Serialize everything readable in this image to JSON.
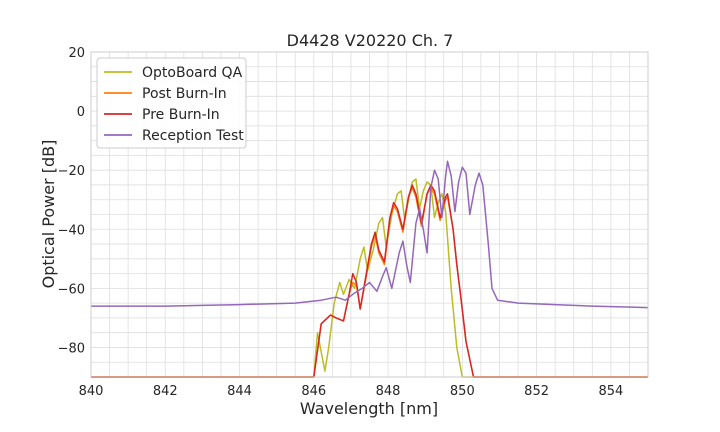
{
  "chart_data": {
    "type": "line",
    "title": "D4428 V20220 Ch. 7",
    "xlabel": "Wavelength [nm]",
    "ylabel": "Optical Power [dB]",
    "xlim": [
      840,
      855
    ],
    "ylim": [
      -90,
      20
    ],
    "xticks": [
      840,
      842,
      844,
      846,
      848,
      850,
      852,
      854
    ],
    "yticks": [
      20,
      0,
      -20,
      -40,
      -60,
      -80
    ],
    "grid": true,
    "legend_position": "top-left",
    "series": [
      {
        "name": "OptoBoard QA",
        "color": "#bcbd22",
        "points": [
          [
            840.0,
            -90
          ],
          [
            846.0,
            -90
          ],
          [
            846.1,
            -75
          ],
          [
            846.3,
            -88
          ],
          [
            846.4,
            -80
          ],
          [
            846.55,
            -65
          ],
          [
            846.7,
            -58
          ],
          [
            846.8,
            -62
          ],
          [
            846.95,
            -57
          ],
          [
            847.1,
            -60
          ],
          [
            847.25,
            -50
          ],
          [
            847.35,
            -46
          ],
          [
            847.45,
            -54
          ],
          [
            847.6,
            -47
          ],
          [
            847.75,
            -38
          ],
          [
            847.85,
            -36
          ],
          [
            847.95,
            -46
          ],
          [
            848.1,
            -35
          ],
          [
            848.25,
            -28
          ],
          [
            848.35,
            -27
          ],
          [
            848.45,
            -37
          ],
          [
            848.55,
            -30
          ],
          [
            848.65,
            -24
          ],
          [
            848.75,
            -23
          ],
          [
            848.85,
            -33
          ],
          [
            848.95,
            -27
          ],
          [
            849.05,
            -24
          ],
          [
            849.15,
            -25
          ],
          [
            849.25,
            -36
          ],
          [
            849.35,
            -31
          ],
          [
            849.45,
            -28
          ],
          [
            849.55,
            -34
          ],
          [
            849.7,
            -60
          ],
          [
            849.85,
            -80
          ],
          [
            850.0,
            -90
          ],
          [
            855.0,
            -90
          ]
        ]
      },
      {
        "name": "Post Burn-In",
        "color": "#ff7f0e",
        "points": [
          [
            840.0,
            -90
          ],
          [
            846.0,
            -90
          ],
          [
            846.2,
            -72
          ],
          [
            846.45,
            -69
          ],
          [
            846.6,
            -70
          ],
          [
            846.8,
            -71
          ],
          [
            846.95,
            -62
          ],
          [
            847.05,
            -58
          ],
          [
            847.15,
            -59
          ],
          [
            847.25,
            -67
          ],
          [
            847.4,
            -57
          ],
          [
            847.55,
            -46
          ],
          [
            847.65,
            -42
          ],
          [
            847.75,
            -48
          ],
          [
            847.9,
            -52
          ],
          [
            848.05,
            -37
          ],
          [
            848.15,
            -32
          ],
          [
            848.25,
            -34
          ],
          [
            848.4,
            -41
          ],
          [
            848.55,
            -29
          ],
          [
            848.65,
            -26
          ],
          [
            848.75,
            -29
          ],
          [
            848.9,
            -39
          ],
          [
            849.05,
            -28
          ],
          [
            849.15,
            -26
          ],
          [
            849.25,
            -28
          ],
          [
            849.4,
            -37
          ],
          [
            849.55,
            -30
          ],
          [
            849.6,
            -29
          ],
          [
            849.75,
            -40
          ],
          [
            849.85,
            -52
          ],
          [
            849.95,
            -62
          ],
          [
            850.1,
            -78
          ],
          [
            850.3,
            -90
          ],
          [
            855.0,
            -90
          ]
        ]
      },
      {
        "name": "Pre Burn-In",
        "color": "#d62728",
        "points": [
          [
            840.0,
            -90
          ],
          [
            846.0,
            -90
          ],
          [
            846.2,
            -72
          ],
          [
            846.45,
            -69
          ],
          [
            846.6,
            -70
          ],
          [
            846.8,
            -71
          ],
          [
            846.95,
            -62
          ],
          [
            847.05,
            -55
          ],
          [
            847.15,
            -58
          ],
          [
            847.25,
            -67
          ],
          [
            847.4,
            -56
          ],
          [
            847.55,
            -45
          ],
          [
            847.65,
            -41
          ],
          [
            847.75,
            -47
          ],
          [
            847.9,
            -51
          ],
          [
            848.05,
            -36
          ],
          [
            848.15,
            -31
          ],
          [
            848.25,
            -33
          ],
          [
            848.4,
            -40
          ],
          [
            848.55,
            -29
          ],
          [
            848.65,
            -25
          ],
          [
            848.75,
            -28
          ],
          [
            848.9,
            -38
          ],
          [
            849.05,
            -28
          ],
          [
            849.15,
            -25
          ],
          [
            849.25,
            -27
          ],
          [
            849.4,
            -36
          ],
          [
            849.55,
            -29
          ],
          [
            849.6,
            -28
          ],
          [
            849.75,
            -40
          ],
          [
            849.85,
            -52
          ],
          [
            849.95,
            -62
          ],
          [
            850.1,
            -78
          ],
          [
            850.3,
            -90
          ],
          [
            855.0,
            -90
          ]
        ]
      },
      {
        "name": "Reception Test",
        "color": "#9467bd",
        "points": [
          [
            840.0,
            -66
          ],
          [
            842.0,
            -66
          ],
          [
            844.0,
            -65.5
          ],
          [
            845.5,
            -65
          ],
          [
            846.2,
            -64
          ],
          [
            846.6,
            -63
          ],
          [
            846.85,
            -64
          ],
          [
            847.05,
            -62
          ],
          [
            847.3,
            -60
          ],
          [
            847.5,
            -58
          ],
          [
            847.7,
            -61
          ],
          [
            847.85,
            -56
          ],
          [
            847.95,
            -53
          ],
          [
            848.1,
            -60
          ],
          [
            848.3,
            -48
          ],
          [
            848.4,
            -44
          ],
          [
            848.5,
            -52
          ],
          [
            848.6,
            -58
          ],
          [
            848.75,
            -38
          ],
          [
            848.85,
            -33
          ],
          [
            848.95,
            -40
          ],
          [
            849.05,
            -48
          ],
          [
            849.15,
            -26
          ],
          [
            849.25,
            -20
          ],
          [
            849.35,
            -23
          ],
          [
            849.45,
            -36
          ],
          [
            849.55,
            -22
          ],
          [
            849.6,
            -17
          ],
          [
            849.7,
            -22
          ],
          [
            849.8,
            -34
          ],
          [
            849.9,
            -24
          ],
          [
            850.0,
            -19
          ],
          [
            850.1,
            -21
          ],
          [
            850.2,
            -35
          ],
          [
            850.35,
            -25
          ],
          [
            850.45,
            -21
          ],
          [
            850.55,
            -25
          ],
          [
            850.7,
            -45
          ],
          [
            850.8,
            -60
          ],
          [
            850.95,
            -64
          ],
          [
            851.5,
            -65
          ],
          [
            852.5,
            -65.5
          ],
          [
            853.5,
            -66
          ],
          [
            855.0,
            -66.5
          ]
        ]
      }
    ]
  }
}
